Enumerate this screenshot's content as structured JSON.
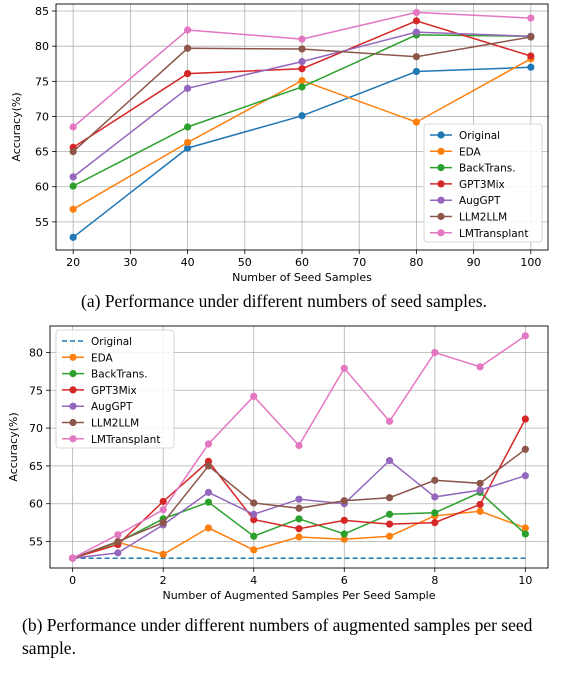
{
  "colors": {
    "Original": "#1f77b4",
    "EDA": "#ff7f0e",
    "BackTrans.": "#2ca02c",
    "GPT3Mix": "#d62728",
    "AugGPT": "#9467bd",
    "LLM2LLM": "#8c564b",
    "LMTransplant": "#e377c2"
  },
  "captions": {
    "a": "(a) Performance under different numbers of seed samples.",
    "b": "(b) Performance under different numbers of augmented samples per seed sample."
  },
  "chart_data": [
    {
      "type": "line",
      "xlabel": "Number of Seed Samples",
      "ylabel": "Accuracy(%)",
      "x": [
        20,
        40,
        60,
        80,
        100
      ],
      "xlim": [
        17,
        103
      ],
      "ylim": [
        51,
        86
      ],
      "xticks": [
        20,
        30,
        40,
        50,
        60,
        70,
        80,
        90,
        100
      ],
      "yticks": [
        55,
        60,
        65,
        70,
        75,
        80,
        85
      ],
      "grid": true,
      "legend": "lower-right",
      "series": [
        {
          "name": "Original",
          "values": [
            52.8,
            65.5,
            70.1,
            76.4,
            77.0
          ]
        },
        {
          "name": "EDA",
          "values": [
            56.8,
            66.3,
            75.1,
            69.2,
            78.2
          ]
        },
        {
          "name": "BackTrans.",
          "values": [
            60.1,
            68.5,
            74.2,
            81.6,
            81.4
          ]
        },
        {
          "name": "GPT3Mix",
          "values": [
            65.6,
            76.1,
            76.8,
            83.6,
            78.6
          ]
        },
        {
          "name": "AugGPT",
          "values": [
            61.4,
            74.0,
            77.8,
            82.0,
            81.4
          ]
        },
        {
          "name": "LLM2LLM",
          "values": [
            65.0,
            79.7,
            79.6,
            78.5,
            81.3
          ]
        },
        {
          "name": "LMTransplant",
          "values": [
            68.5,
            82.3,
            81.0,
            84.8,
            84.0
          ]
        }
      ]
    },
    {
      "type": "line",
      "xlabel": "Number of Augmented Samples Per Seed Sample",
      "ylabel": "Accuracy(%)",
      "x": [
        0,
        1,
        2,
        3,
        4,
        5,
        6,
        7,
        8,
        9,
        10
      ],
      "xlim": [
        -0.5,
        10.5
      ],
      "ylim": [
        51.5,
        83.5
      ],
      "xticks": [
        0,
        2,
        4,
        6,
        8,
        10
      ],
      "yticks": [
        55,
        60,
        65,
        70,
        75,
        80
      ],
      "grid": true,
      "legend": "upper-left",
      "series": [
        {
          "name": "Original",
          "style": "dashed",
          "values": [
            52.8,
            52.8,
            52.8,
            52.8,
            52.8,
            52.8,
            52.8,
            52.8,
            52.8,
            52.8,
            52.8
          ]
        },
        {
          "name": "EDA",
          "values": [
            52.8,
            54.9,
            53.3,
            56.8,
            53.9,
            55.6,
            55.3,
            55.7,
            58.4,
            59.0,
            56.8
          ]
        },
        {
          "name": "BackTrans.",
          "values": [
            52.8,
            54.9,
            58.0,
            60.2,
            55.7,
            58.0,
            56.0,
            58.6,
            58.8,
            61.5,
            56.0
          ]
        },
        {
          "name": "GPT3Mix",
          "values": [
            52.8,
            54.6,
            60.3,
            65.6,
            57.9,
            56.7,
            57.8,
            57.3,
            57.5,
            59.9,
            71.2
          ]
        },
        {
          "name": "AugGPT",
          "values": [
            52.8,
            53.5,
            57.2,
            61.5,
            58.6,
            60.6,
            60.0,
            65.7,
            60.9,
            61.8,
            63.7
          ]
        },
        {
          "name": "LLM2LLM",
          "values": [
            52.8,
            55.0,
            57.5,
            65.0,
            60.1,
            59.4,
            60.4,
            60.8,
            63.1,
            62.7,
            67.2
          ]
        },
        {
          "name": "LMTransplant",
          "values": [
            52.8,
            55.9,
            59.2,
            67.9,
            74.2,
            67.7,
            77.9,
            70.9,
            80.0,
            78.1,
            82.2
          ]
        }
      ]
    }
  ]
}
